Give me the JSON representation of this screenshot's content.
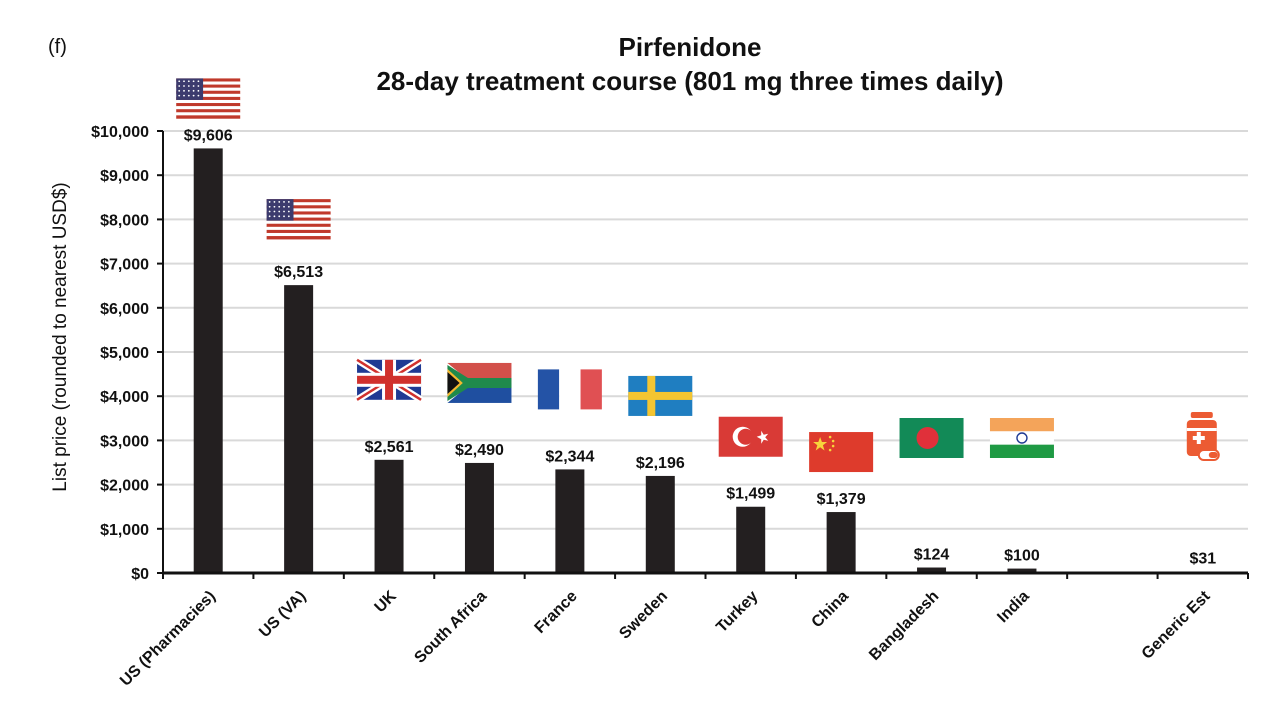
{
  "panel_label": "(f)",
  "chart_data": {
    "type": "bar",
    "title": "Pirfenidone",
    "subtitle": "28-day treatment course (801 mg three times daily)",
    "xlabel": "",
    "ylabel": "List price (rounded to nearest USD$)",
    "ylim": [
      0,
      10000
    ],
    "yticks": [
      0,
      1000,
      2000,
      3000,
      4000,
      5000,
      6000,
      7000,
      8000,
      9000,
      10000
    ],
    "ytick_labels": [
      "$0",
      "$1,000",
      "$2,000",
      "$3,000",
      "$4,000",
      "$5,000",
      "$6,000",
      "$7,000",
      "$8,000",
      "$9,000",
      "$10,000"
    ],
    "grid": true,
    "bar_color": "#231f20",
    "categories": [
      "US (Pharmacies)",
      "US (VA)",
      "UK",
      "South Africa",
      "France",
      "Sweden",
      "Turkey",
      "China",
      "Bangladesh",
      "India",
      "",
      "Generic Est"
    ],
    "values": [
      9606,
      6513,
      2561,
      2490,
      2344,
      2196,
      1499,
      1379,
      124,
      100,
      null,
      31
    ],
    "value_labels": [
      "$9,606",
      "$6,513",
      "$2,561",
      "$2,490",
      "$2,344",
      "$2,196",
      "$1,499",
      "$1,379",
      "$124",
      "$100",
      "",
      "$31"
    ],
    "flags": [
      "us-flag-icon",
      "us-flag-icon",
      "uk-flag-icon",
      "south-africa-flag-icon",
      "france-flag-icon",
      "sweden-flag-icon",
      "turkey-flag-icon",
      "china-flag-icon",
      "bangladesh-flag-icon",
      "india-flag-icon",
      "",
      "pill-bottle-icon"
    ]
  }
}
